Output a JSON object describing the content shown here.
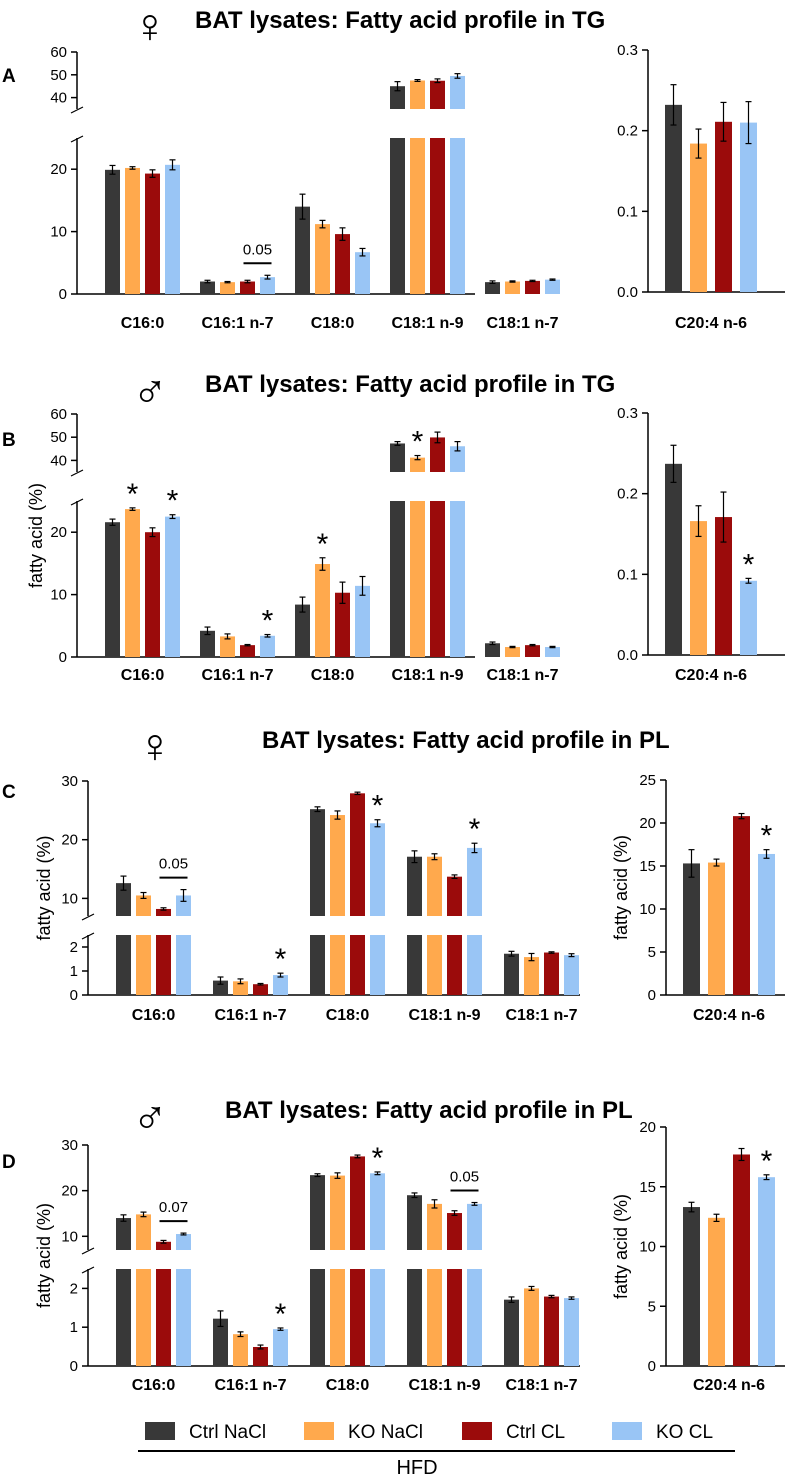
{
  "legend": {
    "items": [
      {
        "label": "Ctrl NaCl",
        "color": "#383838"
      },
      {
        "label": "KO NaCl",
        "color": "#ffa94d"
      },
      {
        "label": "Ctrl CL",
        "color": "#9b0b0b"
      },
      {
        "label": "KO CL",
        "color": "#99c5f5"
      }
    ],
    "diet": "HFD"
  },
  "chart_data": [
    {
      "panel": "A",
      "sex_symbol": "♀",
      "type": "bar",
      "broken_axis": true,
      "title": "BAT lysates: Fatty acid profile in TG",
      "ylabel": "",
      "categories": [
        "C16:0",
        "C16:1 n-7",
        "C18:0",
        "C18:1 n-9",
        "C18:1 n-7"
      ],
      "ylim_lower": [
        0,
        25
      ],
      "yticks_lower": [
        0,
        10,
        20
      ],
      "ylim_upper": [
        35,
        60
      ],
      "yticks_upper": [
        40,
        50,
        60
      ],
      "series": [
        {
          "name": "Ctrl NaCl",
          "values": [
            19.9,
            2.0,
            14.0,
            45.0,
            1.9
          ],
          "errors": [
            0.7,
            0.2,
            2.0,
            2.0,
            0.2
          ]
        },
        {
          "name": "KO NaCl",
          "values": [
            20.2,
            1.9,
            11.2,
            47.5,
            2.0
          ],
          "errors": [
            0.2,
            0.1,
            0.6,
            0.4,
            0.1
          ]
        },
        {
          "name": "Ctrl CL",
          "values": [
            19.3,
            2.0,
            9.6,
            47.4,
            2.1
          ],
          "errors": [
            0.6,
            0.2,
            1.0,
            0.8,
            0.1
          ]
        },
        {
          "name": "KO CL",
          "values": [
            20.7,
            2.7,
            6.7,
            49.5,
            2.3
          ],
          "errors": [
            0.8,
            0.3,
            0.6,
            1.0,
            0.1
          ]
        }
      ],
      "annotations": [
        {
          "category": 1,
          "text": "0.05",
          "type": "bracket"
        }
      ],
      "side": {
        "categories": [
          "C20:4 n-6"
        ],
        "ylim": [
          0,
          0.3
        ],
        "yticks": [
          "0.0",
          "0.1",
          "0.2",
          "0.3"
        ],
        "ylabel": "",
        "values": [
          0.232,
          0.184,
          0.211,
          0.21
        ],
        "errors": [
          0.025,
          0.018,
          0.024,
          0.026
        ],
        "annotations": []
      }
    },
    {
      "panel": "B",
      "sex_symbol": "♂",
      "type": "bar",
      "broken_axis": true,
      "title": "BAT lysates: Fatty acid profile in TG",
      "ylabel": "fatty acid (%)",
      "categories": [
        "C16:0",
        "C16:1 n-7",
        "C18:0",
        "C18:1 n-9",
        "C18:1 n-7"
      ],
      "ylim_lower": [
        0,
        25
      ],
      "yticks_lower": [
        0,
        10,
        20
      ],
      "ylim_upper": [
        35,
        60
      ],
      "yticks_upper": [
        40,
        50,
        60
      ],
      "series": [
        {
          "name": "Ctrl NaCl",
          "values": [
            21.6,
            4.2,
            8.4,
            47.3,
            2.2
          ],
          "errors": [
            0.5,
            0.6,
            1.2,
            0.8,
            0.2
          ]
        },
        {
          "name": "KO NaCl",
          "values": [
            23.7,
            3.3,
            14.9,
            41.2,
            1.6
          ],
          "errors": [
            0.2,
            0.4,
            1.0,
            0.9,
            0.1
          ]
        },
        {
          "name": "Ctrl CL",
          "values": [
            20.0,
            1.9,
            10.3,
            49.9,
            1.9
          ],
          "errors": [
            0.7,
            0.1,
            1.7,
            2.3,
            0.1
          ]
        },
        {
          "name": "KO CL",
          "values": [
            22.5,
            3.4,
            11.4,
            46.1,
            1.6
          ],
          "errors": [
            0.3,
            0.2,
            1.5,
            2.0,
            0.1
          ]
        }
      ],
      "annotations": [
        {
          "category": 0,
          "series": 1,
          "text": "*"
        },
        {
          "category": 0,
          "series": 3,
          "text": "*"
        },
        {
          "category": 1,
          "series": 3,
          "text": "*"
        },
        {
          "category": 2,
          "series": 1,
          "text": "*"
        },
        {
          "category": 3,
          "series": 1,
          "text": "*"
        }
      ],
      "side": {
        "categories": [
          "C20:4 n-6"
        ],
        "ylim": [
          0,
          0.3
        ],
        "yticks": [
          "0.0",
          "0.1",
          "0.2",
          "0.3"
        ],
        "ylabel": "",
        "values": [
          0.237,
          0.166,
          0.171,
          0.092
        ],
        "errors": [
          0.023,
          0.019,
          0.031,
          0.003
        ],
        "annotations": [
          {
            "series": 3,
            "text": "*"
          }
        ]
      }
    },
    {
      "panel": "C",
      "sex_symbol": "♀",
      "type": "bar",
      "broken_axis": true,
      "title": "BAT lysates: Fatty acid profile in PL",
      "ylabel": "fatty acid (%)",
      "categories": [
        "C16:0",
        "C16:1 n-7",
        "C18:0",
        "C18:1 n-9",
        "C18:1 n-7"
      ],
      "ylim_lower": [
        0,
        2.5
      ],
      "yticks_lower": [
        0,
        1,
        2
      ],
      "ylim_upper": [
        7,
        30
      ],
      "yticks_upper": [
        10,
        20,
        30
      ],
      "series": [
        {
          "name": "Ctrl NaCl",
          "values": [
            12.6,
            0.6,
            25.2,
            17.1,
            1.72
          ],
          "errors": [
            1.2,
            0.15,
            0.4,
            1.0,
            0.1
          ]
        },
        {
          "name": "KO NaCl",
          "values": [
            10.5,
            0.57,
            24.2,
            17.1,
            1.58
          ],
          "errors": [
            0.5,
            0.1,
            0.7,
            0.5,
            0.15
          ]
        },
        {
          "name": "Ctrl CL",
          "values": [
            8.2,
            0.45,
            27.9,
            13.7,
            1.77
          ],
          "errors": [
            0.2,
            0.03,
            0.2,
            0.3,
            0.03
          ]
        },
        {
          "name": "KO CL",
          "values": [
            10.5,
            0.83,
            22.8,
            18.6,
            1.66
          ],
          "errors": [
            1.0,
            0.08,
            0.6,
            0.8,
            0.06
          ]
        }
      ],
      "annotations": [
        {
          "category": 0,
          "text": "0.05",
          "type": "bracket"
        },
        {
          "category": 1,
          "series": 3,
          "text": "*"
        },
        {
          "category": 2,
          "series": 3,
          "text": "*"
        },
        {
          "category": 3,
          "series": 3,
          "text": "*"
        }
      ],
      "side": {
        "categories": [
          "C20:4 n-6"
        ],
        "ylim": [
          0,
          25
        ],
        "yticks": [
          "0",
          "5",
          "10",
          "15",
          "20",
          "25"
        ],
        "ylabel": "fatty acid (%)",
        "values": [
          15.3,
          15.4,
          20.8,
          16.4
        ],
        "errors": [
          1.6,
          0.4,
          0.3,
          0.5
        ],
        "annotations": [
          {
            "series": 3,
            "text": "*"
          }
        ]
      }
    },
    {
      "panel": "D",
      "sex_symbol": "♂",
      "type": "bar",
      "broken_axis": true,
      "title": "BAT lysates: Fatty acid profile in PL",
      "ylabel": "fatty acid (%)",
      "categories": [
        "C16:0",
        "C16:1 n-7",
        "C18:0",
        "C18:1 n-9",
        "C18:1 n-7"
      ],
      "ylim_lower": [
        0,
        2.5
      ],
      "yticks_lower": [
        0,
        1,
        2
      ],
      "ylim_upper": [
        7,
        30
      ],
      "yticks_upper": [
        10,
        20,
        30
      ],
      "series": [
        {
          "name": "Ctrl NaCl",
          "values": [
            14.0,
            1.22,
            23.4,
            19.0,
            1.71
          ],
          "errors": [
            0.7,
            0.2,
            0.3,
            0.5,
            0.07
          ]
        },
        {
          "name": "KO NaCl",
          "values": [
            14.8,
            0.82,
            23.3,
            17.1,
            2.0
          ],
          "errors": [
            0.5,
            0.06,
            0.6,
            0.9,
            0.05
          ]
        },
        {
          "name": "Ctrl CL",
          "values": [
            8.8,
            0.49,
            27.5,
            15.1,
            1.79
          ],
          "errors": [
            0.3,
            0.05,
            0.3,
            0.5,
            0.03
          ]
        },
        {
          "name": "KO CL",
          "values": [
            10.5,
            0.95,
            23.8,
            17.1,
            1.75
          ],
          "errors": [
            0.2,
            0.03,
            0.3,
            0.3,
            0.03
          ]
        }
      ],
      "annotations": [
        {
          "category": 0,
          "text": "0.07",
          "type": "bracket"
        },
        {
          "category": 1,
          "series": 3,
          "text": "*"
        },
        {
          "category": 2,
          "series": 3,
          "text": "*"
        },
        {
          "category": 3,
          "text": "0.05",
          "type": "bracket"
        }
      ],
      "side": {
        "categories": [
          "C20:4 n-6"
        ],
        "ylim": [
          0,
          20
        ],
        "yticks": [
          "0",
          "5",
          "10",
          "15",
          "20"
        ],
        "ylabel": "fatty acid (%)",
        "values": [
          13.3,
          12.4,
          17.7,
          15.8
        ],
        "errors": [
          0.4,
          0.3,
          0.5,
          0.2
        ],
        "annotations": [
          {
            "series": 3,
            "text": "*"
          }
        ]
      }
    }
  ]
}
